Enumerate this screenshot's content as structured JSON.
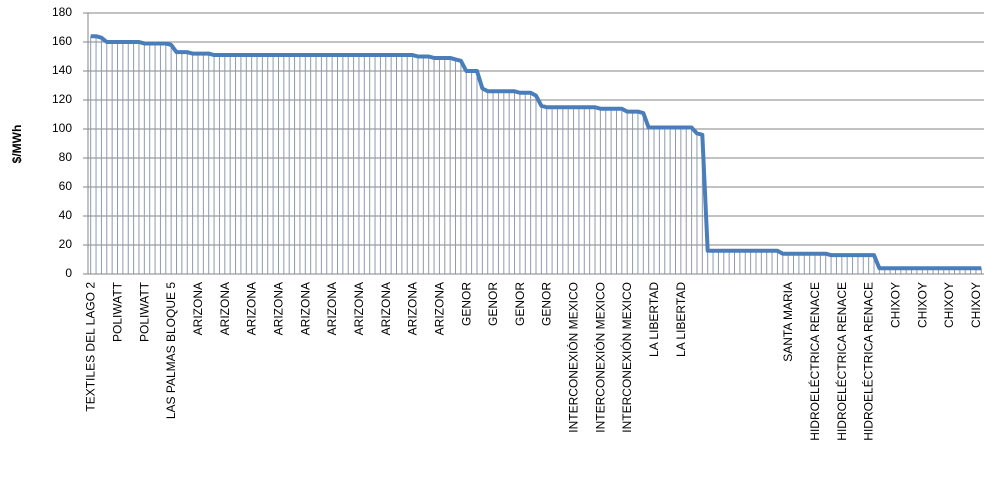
{
  "chart_data": {
    "type": "line",
    "y_label": "$/MWh",
    "categories": [
      "TEXTILES DEL LAGO 2",
      null,
      null,
      null,
      null,
      "POLIWATT",
      null,
      null,
      null,
      null,
      "POLIWATT",
      null,
      null,
      null,
      null,
      "LAS PALMAS BLOQUE 5",
      null,
      null,
      null,
      null,
      "ARIZONA",
      null,
      null,
      null,
      null,
      "ARIZONA",
      null,
      null,
      null,
      null,
      "ARIZONA",
      null,
      null,
      null,
      null,
      "ARIZONA",
      null,
      null,
      null,
      null,
      "ARIZONA",
      null,
      null,
      null,
      null,
      "ARIZONA",
      null,
      null,
      null,
      null,
      "ARIZONA",
      null,
      null,
      null,
      null,
      "ARIZONA",
      null,
      null,
      null,
      null,
      "ARIZONA",
      null,
      null,
      null,
      null,
      "ARIZONA",
      null,
      null,
      null,
      null,
      "GENOR",
      null,
      null,
      null,
      null,
      "GENOR",
      null,
      null,
      null,
      null,
      "GENOR",
      null,
      null,
      null,
      null,
      "GENOR",
      null,
      null,
      null,
      null,
      "INTERCONEXIÓN MEXICO",
      null,
      null,
      null,
      null,
      "INTERCONEXIÓN MEXICO",
      null,
      null,
      null,
      null,
      "INTERCONEXIÓN MEXICO",
      null,
      null,
      null,
      null,
      "LA LIBERTAD",
      null,
      null,
      null,
      null,
      "LA LIBERTAD",
      null,
      null,
      null,
      null,
      null,
      null,
      null,
      null,
      null,
      null,
      null,
      null,
      null,
      null,
      null,
      null,
      null,
      null,
      null,
      "SANTA MARIA",
      null,
      null,
      null,
      null,
      "HIDROELÉCTRICA RENACE",
      null,
      null,
      null,
      null,
      "HIDROELÉCTRICA RENACE",
      null,
      null,
      null,
      null,
      "HIDROELÉCTRICA RENACE",
      null,
      null,
      null,
      null,
      "CHIXOY",
      null,
      null,
      null,
      null,
      "CHIXOY",
      null,
      null,
      null,
      null,
      "CHIXOY",
      null,
      null,
      null,
      null,
      "CHIXOY",
      null
    ],
    "values": [
      164,
      164,
      163,
      160,
      160,
      160,
      160,
      160,
      160,
      160,
      159,
      159,
      159,
      159,
      159,
      158,
      153,
      153,
      153,
      152,
      152,
      152,
      152,
      151,
      151,
      151,
      151,
      151,
      151,
      151,
      151,
      151,
      151,
      151,
      151,
      151,
      151,
      151,
      151,
      151,
      151,
      151,
      151,
      151,
      151,
      151,
      151,
      151,
      151,
      151,
      151,
      151,
      151,
      151,
      151,
      151,
      151,
      151,
      151,
      151,
      151,
      150,
      150,
      150,
      149,
      149,
      149,
      149,
      148,
      147,
      140,
      140,
      140,
      128,
      126,
      126,
      126,
      126,
      126,
      126,
      125,
      125,
      125,
      123,
      116,
      115,
      115,
      115,
      115,
      115,
      115,
      115,
      115,
      115,
      115,
      114,
      114,
      114,
      114,
      114,
      112,
      112,
      112,
      111,
      101,
      101,
      101,
      101,
      101,
      101,
      101,
      101,
      101,
      97,
      96,
      16,
      16,
      16,
      16,
      16,
      16,
      16,
      16,
      16,
      16,
      16,
      16,
      16,
      16,
      14,
      14,
      14,
      14,
      14,
      14,
      14,
      14,
      14,
      13,
      13,
      13,
      13,
      13,
      13,
      13,
      13,
      13,
      4,
      4,
      4,
      4,
      4,
      4,
      4,
      4,
      4,
      4,
      4,
      4,
      4,
      4,
      4,
      4,
      4,
      4,
      4,
      4
    ],
    "color": "#4a7ebb",
    "drop_lines": true,
    "grid": true,
    "ylim": [
      0,
      180
    ],
    "yticks": [
      0,
      20,
      40,
      60,
      80,
      100,
      120,
      140,
      160,
      180
    ]
  }
}
